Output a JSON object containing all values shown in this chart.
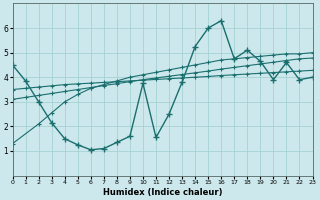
{
  "xlabel": "Humidex (Indice chaleur)",
  "background_color": "#cce8ec",
  "grid_color": "#9ecece",
  "line_color": "#1a6e6e",
  "xlim": [
    0,
    23
  ],
  "ylim": [
    0,
    7
  ],
  "xticks": [
    0,
    1,
    2,
    3,
    4,
    5,
    6,
    7,
    8,
    9,
    10,
    11,
    12,
    13,
    14,
    15,
    16,
    17,
    18,
    19,
    20,
    21,
    22,
    23
  ],
  "yticks": [
    1,
    2,
    3,
    4,
    5,
    6
  ],
  "curve_x": [
    0,
    1,
    2,
    3,
    4,
    5,
    6,
    7,
    8,
    9,
    10,
    11,
    12,
    13,
    14,
    15,
    16,
    17,
    18,
    19,
    20,
    21,
    22,
    23
  ],
  "curve_y": [
    4.5,
    3.85,
    3.0,
    2.15,
    1.5,
    1.25,
    1.05,
    1.1,
    1.35,
    1.6,
    3.75,
    1.55,
    2.5,
    3.8,
    5.25,
    6.0,
    6.3,
    4.75,
    5.1,
    4.65,
    3.9,
    4.6,
    3.9,
    4.0
  ],
  "line1_x": [
    0,
    1,
    2,
    3,
    4,
    5,
    6,
    7,
    8,
    9,
    10,
    11,
    12,
    13,
    14,
    15,
    16,
    17,
    18,
    19,
    20,
    21,
    22,
    23
  ],
  "line1_y": [
    3.5,
    3.55,
    3.6,
    3.65,
    3.7,
    3.73,
    3.76,
    3.79,
    3.82,
    3.85,
    3.88,
    3.91,
    3.94,
    3.97,
    4.0,
    4.03,
    4.07,
    4.1,
    4.13,
    4.16,
    4.19,
    4.22,
    4.25,
    4.28
  ],
  "line2_x": [
    0,
    1,
    2,
    3,
    4,
    5,
    6,
    7,
    8,
    9,
    10,
    11,
    12,
    13,
    14,
    15,
    16,
    17,
    18,
    19,
    20,
    21,
    22,
    23
  ],
  "line2_y": [
    3.1,
    3.18,
    3.26,
    3.34,
    3.42,
    3.5,
    3.58,
    3.66,
    3.74,
    3.82,
    3.9,
    3.97,
    4.04,
    4.11,
    4.18,
    4.25,
    4.33,
    4.4,
    4.47,
    4.54,
    4.61,
    4.68,
    4.75,
    4.78
  ],
  "line3_x": [
    0,
    2,
    3,
    4,
    5,
    6,
    7,
    8,
    9,
    10,
    11,
    12,
    13,
    14,
    15,
    16,
    17,
    18,
    19,
    20,
    21,
    22,
    23
  ],
  "line3_y": [
    1.3,
    2.1,
    2.55,
    3.0,
    3.3,
    3.55,
    3.7,
    3.85,
    4.0,
    4.1,
    4.2,
    4.3,
    4.4,
    4.5,
    4.6,
    4.7,
    4.75,
    4.8,
    4.85,
    4.9,
    4.95,
    4.95,
    5.0
  ]
}
